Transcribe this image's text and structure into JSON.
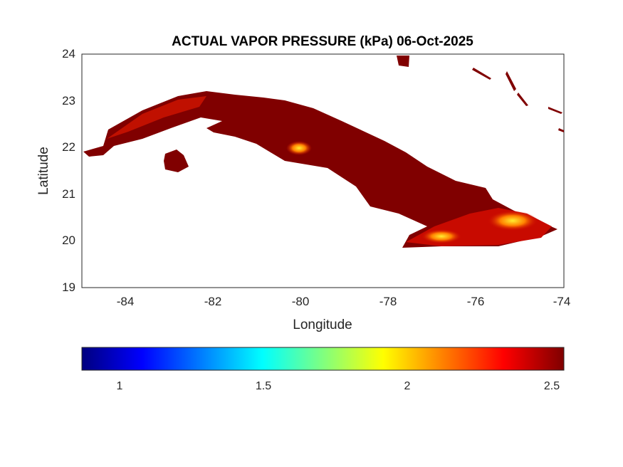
{
  "title": "ACTUAL VAPOR PRESSURE (kPa) 06-Oct-2025",
  "xlabel": "Longitude",
  "ylabel": "Latitude",
  "xticks": [
    "-84",
    "-82",
    "-80",
    "-78",
    "-76",
    "-74"
  ],
  "yticks": [
    "24",
    "23",
    "22",
    "21",
    "20",
    "19"
  ],
  "xlim": [
    -85,
    -74
  ],
  "ylim": [
    19,
    24
  ],
  "colorbar": {
    "ticks": [
      "1",
      "1.5",
      "2",
      "2.5"
    ],
    "range": [
      0.87,
      2.54
    ],
    "colormap": "jet",
    "orientation": "horizontal"
  },
  "colors": {
    "land_dominant": "#800000",
    "land_mid": "#b00000",
    "hotspot": "#ffd000"
  }
}
